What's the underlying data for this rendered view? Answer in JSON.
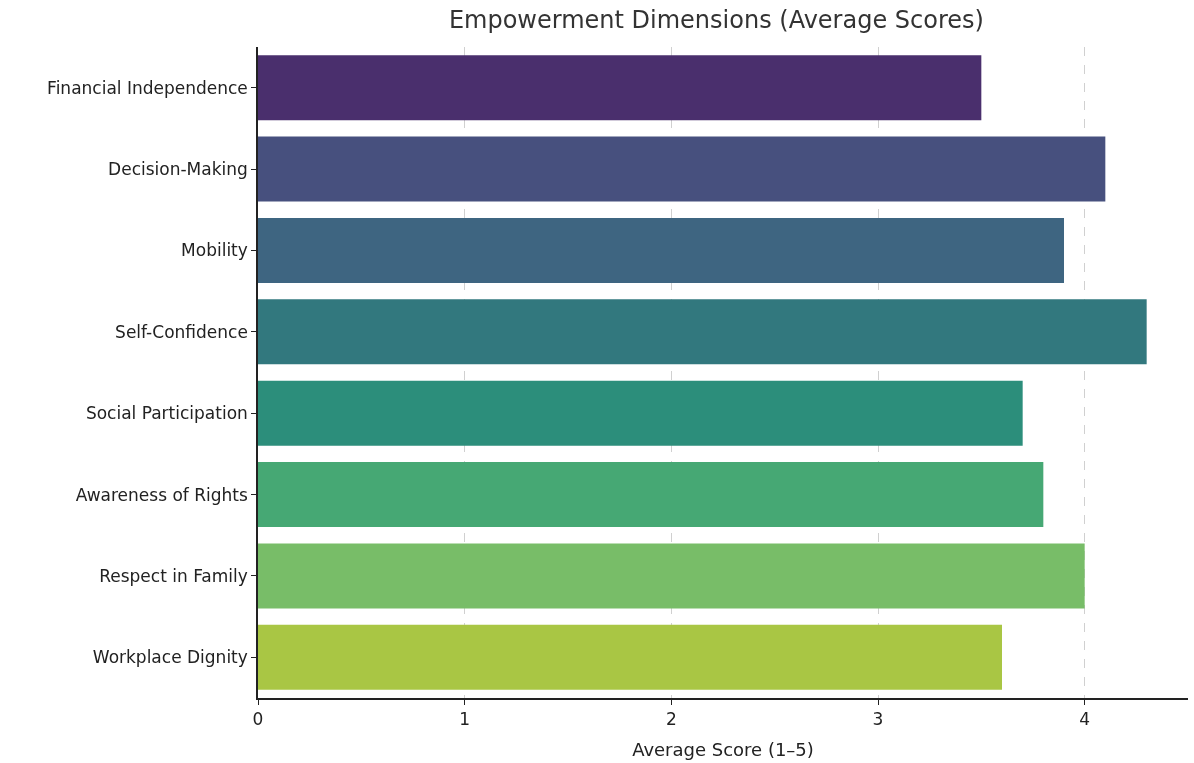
{
  "chart_data": {
    "type": "bar",
    "orientation": "horizontal",
    "title": "Empowerment Dimensions (Average Scores)",
    "xlabel": "Average Score (1–5)",
    "categories": [
      "Financial Independence",
      "Decision-Making",
      "Mobility",
      "Self-Confidence",
      "Social Participation",
      "Awareness of Rights",
      "Respect in Family",
      "Workplace Dignity"
    ],
    "values": [
      3.5,
      4.1,
      3.9,
      4.3,
      3.7,
      3.8,
      4.0,
      3.6
    ],
    "colors": [
      "#4a2f6d",
      "#47507e",
      "#3e6581",
      "#32787e",
      "#2c8e7b",
      "#46a874",
      "#78bd68",
      "#a9c644"
    ],
    "xlim": [
      0,
      4.5
    ],
    "xticks": [
      0,
      1,
      2,
      3,
      4
    ],
    "grid": "x"
  }
}
